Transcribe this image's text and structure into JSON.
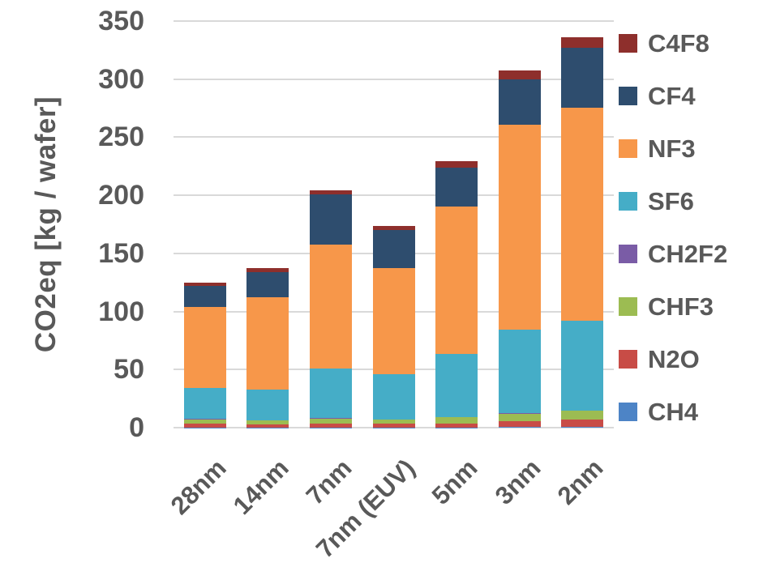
{
  "chart_data": {
    "type": "bar",
    "stacked": true,
    "title": "",
    "xlabel": "",
    "ylabel": "CO2eq [kg / wafer]",
    "ylim": [
      0,
      350
    ],
    "yticks": [
      350,
      300,
      250,
      200,
      150,
      100,
      50,
      0
    ],
    "grid": true,
    "gridline_color": "#d9d9d9",
    "text_color": "#595959",
    "background": "#ffffff",
    "categories": [
      "28nm",
      "14nm",
      "7nm",
      "7nm (EUV)",
      "5nm",
      "3nm",
      "2nm"
    ],
    "series": [
      {
        "name": "CH4",
        "color": "#4d84c6",
        "values": [
          0.3,
          0.3,
          0.3,
          0.3,
          0.3,
          0.4,
          0.4
        ]
      },
      {
        "name": "N2O",
        "color": "#c84c46",
        "values": [
          3,
          2.5,
          3.5,
          3,
          3.5,
          5.5,
          6.5
        ]
      },
      {
        "name": "CHF3",
        "color": "#9cbc52",
        "values": [
          4,
          3.5,
          4,
          3.5,
          5,
          6,
          7.5
        ]
      },
      {
        "name": "CH2F2",
        "color": "#7a5ca6",
        "values": [
          0.3,
          0.3,
          0.3,
          0.3,
          0.3,
          0.4,
          0.4
        ]
      },
      {
        "name": "SF6",
        "color": "#45adc7",
        "values": [
          26.5,
          26.5,
          43,
          39,
          54.5,
          72,
          77.5
        ]
      },
      {
        "name": "NF3",
        "color": "#f7974a",
        "values": [
          70,
          79,
          106.5,
          91.5,
          126.5,
          176.5,
          183
        ]
      },
      {
        "name": "CF4",
        "color": "#2e4d6e",
        "values": [
          18,
          22,
          43,
          32.5,
          33.5,
          39,
          51.5
        ]
      },
      {
        "name": "C4F8",
        "color": "#8e2f2c",
        "values": [
          3,
          3,
          3.5,
          3.3,
          6,
          8,
          9
        ]
      }
    ],
    "totals": [
      125,
      137,
      204,
      173,
      229,
      308,
      336
    ],
    "legend": {
      "position": "right",
      "order": [
        "C4F8",
        "CF4",
        "NF3",
        "SF6",
        "CH2F2",
        "CHF3",
        "N2O",
        "CH4"
      ]
    }
  }
}
